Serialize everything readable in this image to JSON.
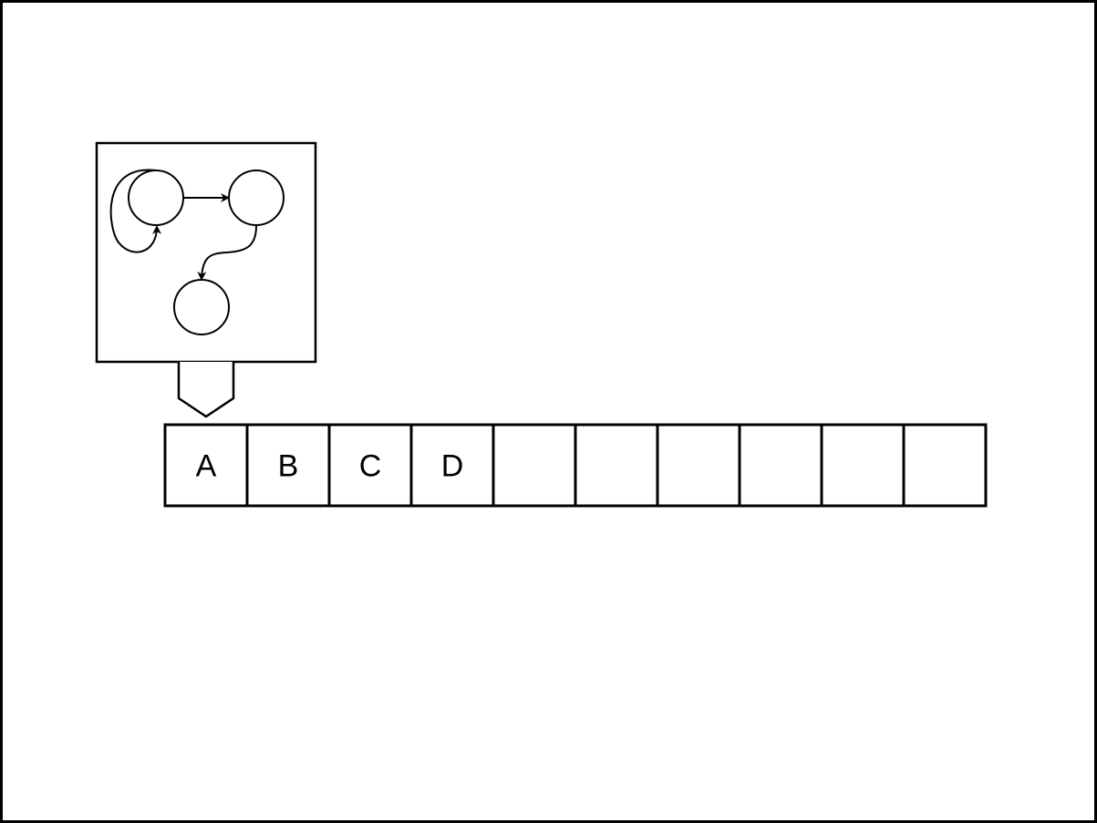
{
  "diagram": {
    "kind": "turing-machine-style tape with state-machine head",
    "state_machine": {
      "nodes": [
        "state-1",
        "state-2",
        "state-3"
      ],
      "edges": [
        {
          "from": "state-1",
          "to": "state-1",
          "type": "self-loop"
        },
        {
          "from": "state-1",
          "to": "state-2",
          "type": "arrow"
        },
        {
          "from": "state-2",
          "to": "state-3",
          "type": "curved-arrow"
        }
      ]
    },
    "head_points_to_cell": 0,
    "tape": {
      "cells": [
        "A",
        "B",
        "C",
        "D",
        "",
        "",
        "",
        "",
        "",
        ""
      ]
    },
    "colors": {
      "stroke": "#000000",
      "fill": "#ffffff"
    }
  }
}
